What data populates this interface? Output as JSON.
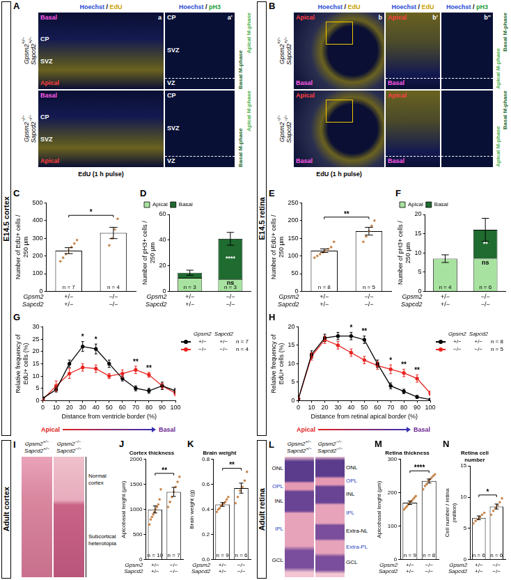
{
  "sections": [
    "E14.5 cortex",
    "E14.5 retina",
    "Adult cortex",
    "Adult retina"
  ],
  "image_panels": {
    "A": {
      "letter": "A",
      "caption": "EdU (1 h pulse)",
      "columns": [
        {
          "sub": "a",
          "stain": {
            "text": "Hoechst / EdU",
            "colors": [
              "#2a4bd7",
              "#c9a000"
            ]
          },
          "labels": [
            {
              "text": "Basal",
              "color": "#ff5ae6"
            },
            {
              "text": "CP",
              "color": "#ffffff"
            },
            {
              "text": "SVZ",
              "color": "#ffffff"
            },
            {
              "text": "Apical",
              "color": "#ff4040"
            }
          ]
        },
        {
          "sub": "a'",
          "stain": {
            "text": "Hoechst / pH3",
            "colors": [
              "#2a4bd7",
              "#1e9e3a"
            ]
          },
          "labels": [
            {
              "text": "CP",
              "color": "#ffffff"
            },
            {
              "text": "SVZ",
              "color": "#ffffff"
            },
            {
              "text": "VZ",
              "color": "#ffffff"
            }
          ]
        }
      ],
      "rows": [
        {
          "genotype": [
            "Gpsm2+/−",
            "Sapcd2+/−"
          ]
        },
        {
          "genotype": [
            "Gpsm2−/−",
            "Sapcd2−/−"
          ]
        }
      ],
      "side_labels": [
        {
          "text": "Basal M-phase",
          "color": "#1f6b30"
        },
        {
          "text": "Apical M-phase",
          "color": "#4fb34f"
        }
      ]
    },
    "B": {
      "letter": "B",
      "caption": "EdU (1 h pulse)",
      "columns": [
        {
          "sub": "b",
          "stain": {
            "text": "Hoechst / EdU",
            "colors": [
              "#2a4bd7",
              "#c9a000"
            ]
          },
          "labels": [
            {
              "text": "Apical",
              "color": "#ff4040"
            },
            {
              "text": "Basal",
              "color": "#ff5ae6"
            }
          ]
        },
        {
          "sub": "b'",
          "stain": {
            "text": "Hoechst / EdU",
            "colors": [
              "#2a4bd7",
              "#c9a000"
            ]
          },
          "labels": [
            {
              "text": "Apical",
              "color": "#ff4040"
            },
            {
              "text": "Basal",
              "color": "#ff5ae6"
            }
          ]
        },
        {
          "sub": "b''",
          "stain": {
            "text": "Hoechst / pH3",
            "colors": [
              "#2a4bd7",
              "#1e9e3a"
            ]
          },
          "labels": []
        }
      ],
      "rows": [
        {
          "genotype": [
            "Gpsm2+/−",
            "Sapcd2+/−"
          ]
        },
        {
          "genotype": [
            "Gpsm2−/−",
            "Sapcd2−/−"
          ]
        }
      ],
      "side_labels": [
        {
          "text": "Apical M-phase",
          "color": "#4fb34f"
        },
        {
          "text": "Basal M-phase",
          "color": "#1f6b30"
        }
      ]
    },
    "I": {
      "letter": "I",
      "genotypes": [
        [
          "Gpsm2+/−",
          "Sapcd2+/−"
        ],
        [
          "Gpsm2−/−",
          "Sapcd2−/−"
        ]
      ],
      "region_labels": [
        "Normal cortex",
        "Subcortical heterotopia"
      ]
    },
    "L": {
      "letter": "L",
      "genotypes": [
        [
          "Gpsm2+/−",
          "Sapcd2+/−"
        ],
        [
          "Gpsm2−/−",
          "Sapcd2−/−"
        ]
      ],
      "layers_left": [
        "ONL",
        "OPL",
        "INL",
        "IPL",
        "GCL"
      ],
      "layers_right": [
        "ONL",
        "OPL",
        "INL",
        "IPL",
        "Extra-NL",
        "Extra-PL",
        "GCL"
      ]
    }
  },
  "chart_data": [
    {
      "panel": "C",
      "type": "bar",
      "y_label": "Number of EdU+ cells / 250 µm",
      "categories": [
        [
          "+/−",
          "+/−"
        ],
        [
          "−/−",
          "−/−"
        ]
      ],
      "category_rows": [
        "Gpsm2",
        "Sapcd2"
      ],
      "values": [
        230,
        330
      ],
      "errors": [
        17,
        32
      ],
      "points": [
        [
          170,
          190,
          210,
          230,
          250,
          270,
          290
        ],
        [
          260,
          300,
          350,
          410
        ]
      ],
      "n_labels": [
        "n = 7",
        "n = 4"
      ],
      "significance": "*",
      "color": "#ffffff",
      "ylim": [
        0,
        500
      ],
      "yticks": [
        0,
        100,
        200,
        300,
        400,
        500
      ]
    },
    {
      "panel": "D",
      "type": "bar",
      "stacked": true,
      "legend": "top-left",
      "y_label": "Number of pH3+ cells / 250 µm",
      "categories": [
        [
          "+/−",
          "+/−"
        ],
        [
          "−/−",
          "−/−"
        ]
      ],
      "category_rows": [
        "Gpsm2",
        "Sapcd2"
      ],
      "series": [
        {
          "name": "Apical",
          "color": "#a8e2a0",
          "values": [
            10.5,
            9.5
          ],
          "annotations": [
            null,
            "ns"
          ]
        },
        {
          "name": "Basal",
          "color": "#1f6b30",
          "values": [
            4,
            31.5
          ],
          "errors": [
            2,
            5
          ],
          "annotations": [
            null,
            "****"
          ]
        }
      ],
      "n_labels": [
        "n = 3",
        "n = 3"
      ],
      "ylim": [
        0,
        60
      ],
      "yticks": [
        0,
        20,
        40,
        60
      ]
    },
    {
      "panel": "E",
      "type": "bar",
      "y_label": "Number of EdU+ cells / 250 µm",
      "categories": [
        [
          "+/−",
          "+/−"
        ],
        [
          "−/−",
          "−/−"
        ]
      ],
      "category_rows": [
        "Gpsm2",
        "Sapcd2"
      ],
      "values": [
        115,
        170
      ],
      "errors": [
        5,
        11
      ],
      "points": [
        [
          95,
          100,
          105,
          110,
          115,
          120,
          125,
          140
        ],
        [
          140,
          155,
          170,
          185,
          200
        ]
      ],
      "n_labels": [
        "n = 8",
        "n = 5"
      ],
      "significance": "**",
      "color": "#ffffff",
      "ylim": [
        0,
        250
      ],
      "yticks": [
        0,
        50,
        100,
        150,
        200,
        250
      ]
    },
    {
      "panel": "F",
      "type": "bar",
      "stacked": true,
      "legend": "top-left",
      "y_label": "Number of pH3+ cells / 250 µm",
      "categories": [
        [
          "+/−",
          "+/−"
        ],
        [
          "−/−",
          "−/−"
        ]
      ],
      "category_rows": [
        "Gpsm2",
        "Sapcd2"
      ],
      "series": [
        {
          "name": "Apical",
          "color": "#a8e2a0",
          "values": [
            8.5,
            8.5
          ],
          "annotations": [
            null,
            "ns"
          ]
        },
        {
          "name": "Basal",
          "color": "#1f6b30",
          "values": [
            0,
            7.5
          ],
          "errors": [
            1,
            3
          ],
          "annotations": [
            null,
            "**"
          ]
        }
      ],
      "n_labels": [
        "n = 4",
        "n = 6"
      ],
      "ylim": [
        0,
        20
      ],
      "yticks": [
        0,
        5,
        10,
        15,
        20
      ]
    },
    {
      "panel": "G",
      "type": "line",
      "x_label": "Distance from ventricle border (%)",
      "y_label": "Relative frequency of EdU+ cells (%)",
      "x": [
        0,
        10,
        20,
        30,
        40,
        50,
        60,
        70,
        80,
        90,
        100
      ],
      "xlim": [
        0,
        100
      ],
      "xticks": [
        0,
        10,
        20,
        30,
        40,
        50,
        60,
        70,
        80,
        90,
        100
      ],
      "ylim": [
        0,
        30
      ],
      "yticks": [
        0,
        5,
        10,
        15,
        20,
        25,
        30
      ],
      "legend": "right",
      "legend_header": [
        "Gpsm2",
        "Sapcd2"
      ],
      "series": [
        {
          "genotypes": [
            "+/−",
            "+/−"
          ],
          "n_label": "n = 7",
          "color": "#000000",
          "marker": "circle",
          "values": [
            1,
            4.5,
            15,
            22,
            21,
            15,
            9,
            5,
            4,
            6,
            4
          ],
          "errors": [
            0.3,
            1,
            1.5,
            2,
            2,
            1.5,
            1,
            1,
            1,
            1.5,
            1
          ]
        },
        {
          "genotypes": [
            "−/−",
            "−/−"
          ],
          "n_label": "n = 4",
          "color": "#e8231f",
          "marker": "circle",
          "values": [
            0.5,
            6,
            11,
            13.5,
            13,
            10,
            11,
            12.5,
            10.5,
            6,
            3
          ],
          "errors": [
            0.3,
            2,
            2,
            1.5,
            1.5,
            1,
            1.5,
            1.5,
            1,
            1,
            1
          ]
        }
      ],
      "annotations": [
        {
          "x": 30,
          "text": "*"
        },
        {
          "x": 40,
          "text": "*"
        },
        {
          "x": 70,
          "text": "**"
        },
        {
          "x": 80,
          "text": "**"
        }
      ],
      "direction": [
        "Apical",
        "Basal"
      ]
    },
    {
      "panel": "H",
      "type": "line",
      "x_label": "Distance from retinal apical border (%)",
      "y_label": "Relative frequency of EdU+ cells (%)",
      "x": [
        0,
        10,
        20,
        30,
        40,
        50,
        60,
        70,
        80,
        90,
        100
      ],
      "xlim": [
        0,
        100
      ],
      "xticks": [
        0,
        10,
        20,
        30,
        40,
        50,
        60,
        70,
        80,
        90,
        100
      ],
      "ylim": [
        0,
        20
      ],
      "yticks": [
        0,
        5,
        10,
        15,
        20
      ],
      "legend": "right",
      "legend_header": [
        "Gpsm2",
        "Sapcd2"
      ],
      "series": [
        {
          "genotypes": [
            "+/−",
            "+/−"
          ],
          "n_label": "n = 8",
          "color": "#000000",
          "marker": "circle",
          "values": [
            0.5,
            12.5,
            17,
            17.5,
            17.5,
            16.5,
            10,
            4,
            2.5,
            1,
            0.3
          ],
          "errors": [
            0.2,
            1,
            1,
            1,
            1,
            1,
            1,
            0.8,
            0.6,
            0.4,
            0.2
          ]
        },
        {
          "genotypes": [
            "−/−",
            "−/−"
          ],
          "n_label": "n = 5",
          "color": "#e8231f",
          "marker": "circle",
          "values": [
            0.5,
            12,
            16.5,
            15,
            13,
            11,
            9.5,
            8.5,
            7.5,
            6,
            2
          ],
          "errors": [
            0.2,
            1,
            1,
            1,
            1,
            1,
            1,
            1.2,
            1,
            1,
            0.6
          ]
        }
      ],
      "annotations": [
        {
          "x": 40,
          "text": "*"
        },
        {
          "x": 50,
          "text": "**"
        },
        {
          "x": 70,
          "text": "*"
        },
        {
          "x": 80,
          "text": "**"
        },
        {
          "x": 90,
          "text": "**"
        }
      ],
      "direction": [
        "Apical",
        "Basal"
      ]
    },
    {
      "panel": "J",
      "type": "bar",
      "title": "Cortex thickness",
      "y_label": "Apicobasal lenght (µm)",
      "categories": [
        [
          "+/−",
          "+/−"
        ],
        [
          "−/−",
          "−/−"
        ]
      ],
      "category_rows": [
        "Gpsm2",
        "Sapcd2"
      ],
      "values": [
        1000,
        1350
      ],
      "errors": [
        70,
        90
      ],
      "points": [
        [
          700,
          800,
          850,
          900,
          950,
          1000,
          1050,
          1100,
          1200,
          1400
        ],
        [
          1050,
          1150,
          1250,
          1350,
          1450,
          1550,
          1650
        ]
      ],
      "n_labels": [
        "n = 10",
        "n = 7"
      ],
      "significance": "**",
      "color": "#ffffff",
      "ylim": [
        0,
        2000
      ],
      "yticks": [
        0,
        500,
        1000,
        1500,
        2000
      ]
    },
    {
      "panel": "K",
      "type": "bar",
      "title": "Brain weight",
      "y_label": "Brain weight (g)",
      "categories": [
        [
          "+/−",
          "+/−"
        ],
        [
          "−/−",
          "−/−"
        ]
      ],
      "category_rows": [
        "Gpsm2",
        "Sapcd2"
      ],
      "values": [
        0.44,
        0.57
      ],
      "errors": [
        0.015,
        0.04
      ],
      "points": [
        [
          0.38,
          0.4,
          0.41,
          0.43,
          0.44,
          0.45,
          0.46,
          0.48,
          0.5
        ],
        [
          0.45,
          0.5,
          0.55,
          0.58,
          0.63,
          0.7
        ]
      ],
      "n_labels": [
        "n = 9",
        "n = 6"
      ],
      "significance": "**",
      "color": "#ffffff",
      "ylim": [
        0,
        0.8
      ],
      "yticks": [
        {
          "value": 0,
          "label": "0.0"
        },
        0.2,
        0.4,
        0.6,
        0.8
      ]
    },
    {
      "panel": "M",
      "type": "bar",
      "title": "Retina thickness",
      "y_label": "Apicobasal lenght (µm)",
      "categories": [
        [
          "+/−",
          "+/−"
        ],
        [
          "−/−",
          "−/−"
        ]
      ],
      "category_rows": [
        "Gpsm2",
        "Sapcd2"
      ],
      "values": [
        170,
        235
      ],
      "errors": [
        5,
        6
      ],
      "points": [
        [
          150,
          155,
          160,
          165,
          170,
          175,
          180,
          185,
          190
        ],
        [
          210,
          220,
          225,
          235,
          240,
          245,
          250,
          255
        ]
      ],
      "n_labels": [
        "n = 9",
        "n = 8"
      ],
      "significance": "****",
      "color": "#ffffff",
      "ylim": [
        0,
        300
      ],
      "yticks": [
        0,
        100,
        200,
        300
      ]
    },
    {
      "panel": "N",
      "type": "bar",
      "title": "Retina cell number",
      "y_label": "Cell number / retina (million)",
      "categories": [
        [
          "+/−",
          "+/−"
        ],
        [
          "−/−",
          "−/−"
        ]
      ],
      "category_rows": [
        "Gpsm2",
        "Sapcd2"
      ],
      "values": [
        6.7,
        8.5
      ],
      "errors": [
        0.3,
        0.4
      ],
      "points": [
        [
          5.8,
          6.2,
          6.5,
          6.8,
          7.2,
          7.5
        ],
        [
          7.2,
          7.8,
          8.3,
          8.7,
          9.2,
          9.8
        ]
      ],
      "n_labels": [
        "n = 6",
        "n = 6"
      ],
      "significance": "*",
      "color": "#ffffff",
      "ylim": [
        0,
        15
      ],
      "yticks": [
        0,
        5,
        10,
        15
      ]
    }
  ]
}
